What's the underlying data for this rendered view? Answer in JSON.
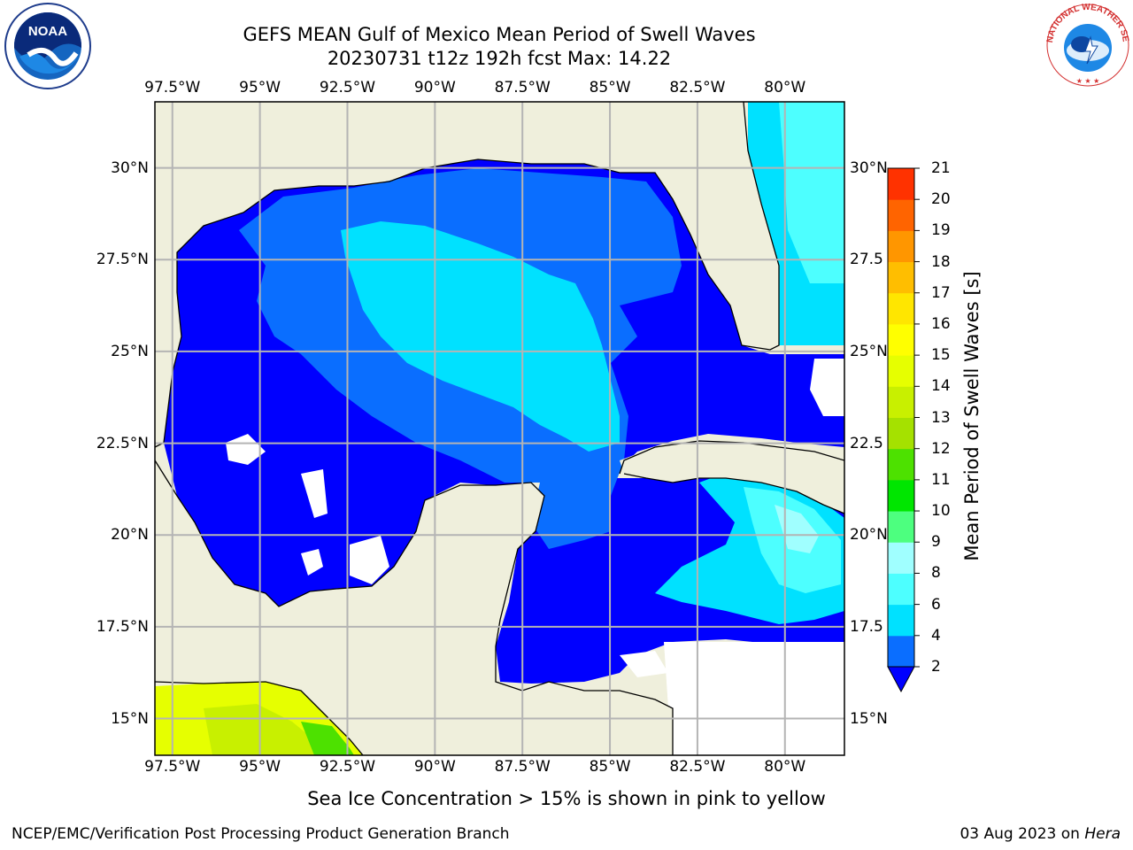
{
  "title": {
    "line1": "GEFS MEAN Gulf of Mexico Mean Period of Swell Waves",
    "line2": "20230731 t12z 192h fcst   Max: 14.22"
  },
  "map": {
    "lon_labels": [
      "97.5°W",
      "95°W",
      "92.5°W",
      "90°W",
      "87.5°W",
      "85°W",
      "82.5°W",
      "80°W"
    ],
    "lat_labels": [
      "30°N",
      "27.5°N",
      "25°N",
      "22.5°N",
      "20°N",
      "17.5°N",
      "15°N"
    ],
    "lat_labels_right": [
      "30°N",
      "27.5",
      "25°N",
      "22.5",
      "20°N",
      "17.5",
      "15°N"
    ],
    "extent": {
      "lon": [
        -98.0,
        -78.3
      ],
      "lat": [
        14.0,
        31.8
      ]
    },
    "land_color": "#efefdc",
    "ocean_nodata_color": "#ffffff",
    "grid_color": "#b4b4b4"
  },
  "colorbar": {
    "title": "Mean Period of Swell Waves [s]",
    "ticks": [
      "21",
      "20",
      "19",
      "18",
      "17",
      "16",
      "15",
      "14",
      "13",
      "12",
      "11",
      "10",
      "9",
      "8",
      "6",
      "4",
      "2"
    ],
    "levels": [
      2,
      4,
      6,
      8,
      9,
      10,
      11,
      12,
      13,
      14,
      15,
      16,
      17,
      18,
      19,
      20,
      21
    ],
    "colors": [
      "#0a6eff",
      "#00e1ff",
      "#4dffff",
      "#a0ffff",
      "#4dff7f",
      "#00e600",
      "#4de100",
      "#a5e100",
      "#c8f000",
      "#e6ff00",
      "#ffff00",
      "#ffe600",
      "#ffbe00",
      "#ff9600",
      "#ff6400",
      "#ff3200"
    ],
    "under_color": "#0000ff"
  },
  "note": "Sea Ice Concentration > 15% is shown in pink to yellow",
  "footer": {
    "left": "NCEP/EMC/Verification Post Processing Product Generation Branch",
    "right_prefix": "03 Aug 2023 on ",
    "right_host": "Hera"
  },
  "logos": {
    "noaa_text": "NOAA",
    "nws_ring_text": "NATIONAL WEATHER SERVICE"
  }
}
